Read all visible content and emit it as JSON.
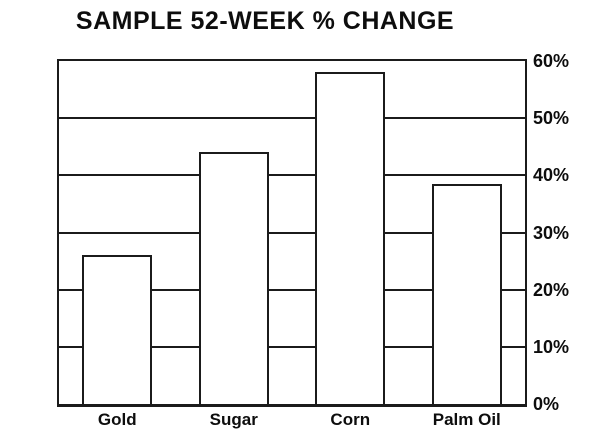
{
  "title": "SAMPLE 52-WEEK % CHANGE",
  "chart_data": {
    "type": "bar",
    "title": "SAMPLE 52-WEEK % CHANGE",
    "categories": [
      "Gold",
      "Sugar",
      "Corn",
      "Palm Oil"
    ],
    "values": [
      26,
      44,
      58,
      38.5
    ],
    "xlabel": "",
    "ylabel": "",
    "ylim": [
      0,
      60
    ],
    "yticks": [
      0,
      10,
      20,
      30,
      40,
      50,
      60
    ],
    "ytick_labels": [
      "0%",
      "10%",
      "20%",
      "30%",
      "40%",
      "50%",
      "60%"
    ],
    "ytick_side": "right",
    "grid": "horizontal",
    "legend": "none",
    "bar_fill": "#ffffff",
    "line_color": "#1b1b1b",
    "text_color": "#0d0d0d",
    "background": "#ffffff"
  }
}
